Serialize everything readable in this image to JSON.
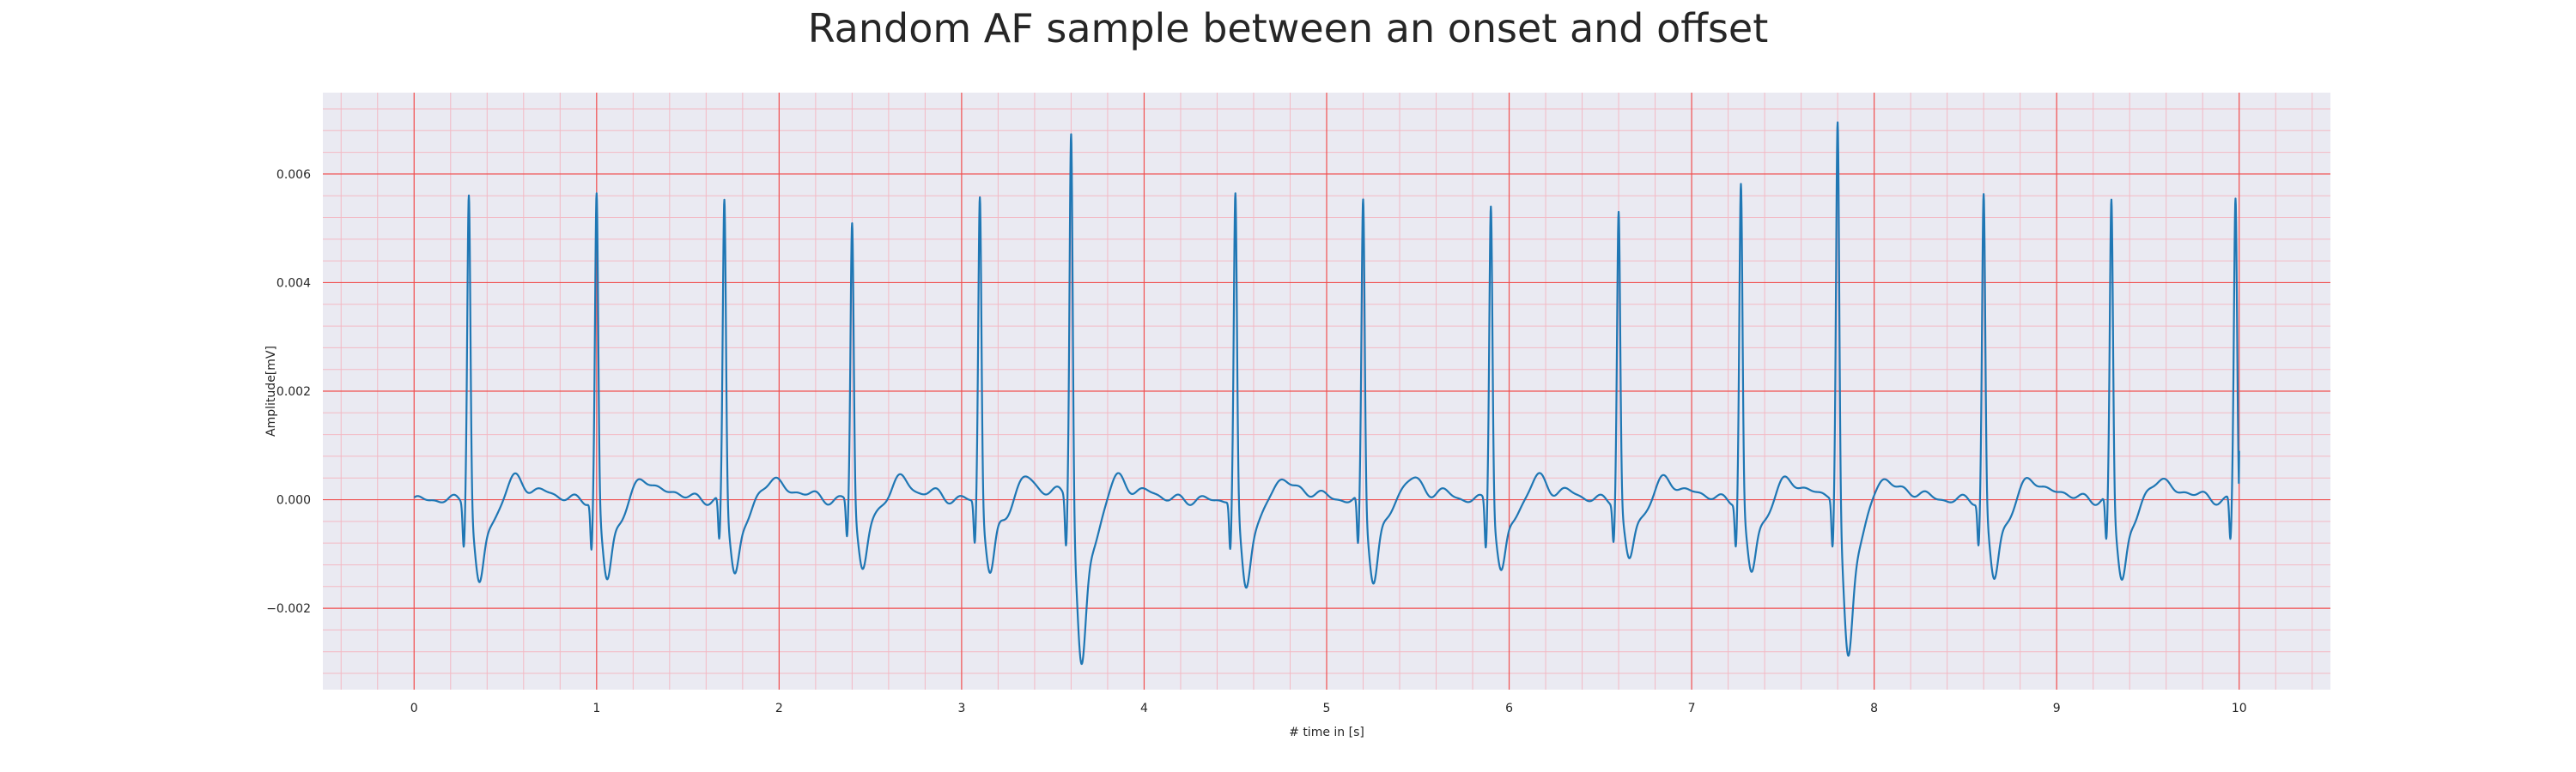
{
  "chart_data": {
    "type": "line",
    "title": "Random AF sample between an onset and offset",
    "xlabel": "# time in [s]",
    "ylabel": "Amplitude[mV]",
    "xlim": [
      -0.5,
      10.5
    ],
    "ylim": [
      -0.0035,
      0.0075
    ],
    "x_ticks": [
      0,
      1,
      2,
      3,
      4,
      5,
      6,
      7,
      8,
      9,
      10
    ],
    "x_tick_labels": [
      "0",
      "1",
      "2",
      "3",
      "4",
      "5",
      "6",
      "7",
      "8",
      "9",
      "10"
    ],
    "y_ticks": [
      -0.002,
      0.0,
      0.002,
      0.004,
      0.006
    ],
    "y_tick_labels": [
      "−0.002",
      "0.000",
      "0.002",
      "0.004",
      "0.006"
    ],
    "grid": true,
    "colors": {
      "line": "#1f77b4",
      "major_grid": "#f05050",
      "minor_grid": "#f3b9c4",
      "plot_background": "#eaeaf2"
    },
    "series": [
      {
        "beats": [
          {
            "r_time": 0.3,
            "r_peak": 0.0058,
            "q_trough": -0.0008,
            "s_trough": -0.0017
          },
          {
            "r_time": 1.0,
            "r_peak": 0.0057,
            "q_trough": -0.0009,
            "s_trough": -0.0016
          },
          {
            "r_time": 1.7,
            "r_peak": 0.0056,
            "q_trough": -0.0008,
            "s_trough": -0.0015
          },
          {
            "r_time": 2.4,
            "r_peak": 0.0052,
            "q_trough": -0.0007,
            "s_trough": -0.0014
          },
          {
            "r_time": 3.1,
            "r_peak": 0.0057,
            "q_trough": -0.0008,
            "s_trough": -0.0015
          },
          {
            "r_time": 3.6,
            "r_peak": 0.007,
            "q_trough": -0.0009,
            "s_trough": -0.003
          },
          {
            "r_time": 4.5,
            "r_peak": 0.0057,
            "q_trough": -0.0009,
            "s_trough": -0.0017
          },
          {
            "r_time": 5.2,
            "r_peak": 0.0056,
            "q_trough": -0.0009,
            "s_trough": -0.0016
          },
          {
            "r_time": 5.9,
            "r_peak": 0.0056,
            "q_trough": -0.0009,
            "s_trough": -0.0015
          },
          {
            "r_time": 6.6,
            "r_peak": 0.0054,
            "q_trough": -0.0007,
            "s_trough": -0.0013
          },
          {
            "r_time": 7.27,
            "r_peak": 0.0059,
            "q_trough": -0.0008,
            "s_trough": -0.0015
          },
          {
            "r_time": 7.8,
            "r_peak": 0.0071,
            "q_trough": -0.0009,
            "s_trough": -0.0028
          },
          {
            "r_time": 8.6,
            "r_peak": 0.0057,
            "q_trough": -0.0008,
            "s_trough": -0.0016
          },
          {
            "r_time": 9.3,
            "r_peak": 0.0056,
            "q_trough": -0.0008,
            "s_trough": -0.0016
          },
          {
            "r_time": 9.98,
            "r_peak": 0.0056,
            "q_trough": -0.0008,
            "s_trough": -0.001
          }
        ],
        "x_start": 0.0,
        "x_end": 10.0,
        "y_end": 0.0009
      }
    ]
  }
}
